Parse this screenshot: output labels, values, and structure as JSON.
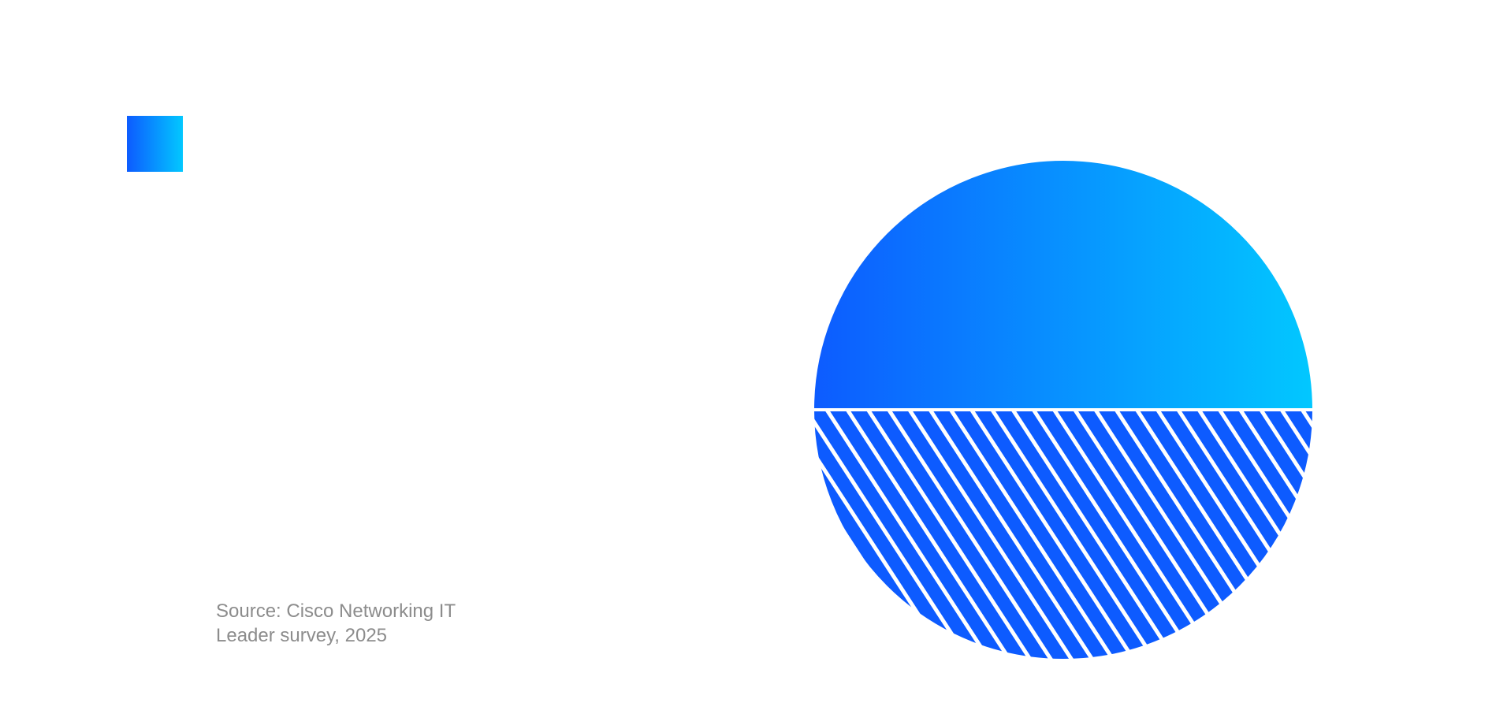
{
  "chart_data": {
    "type": "pie",
    "title": "",
    "slices": [
      {
        "value": 50,
        "style": "solid gradient"
      },
      {
        "value": 50,
        "style": "hatched gradient"
      }
    ],
    "legend": {
      "placement": "top-left",
      "entries": [
        {
          "swatch": "solid gradient"
        }
      ]
    },
    "colors": {
      "gradient_start": "#0D5BFF",
      "gradient_end": "#02C8FF",
      "hatch_line": "#FFFFFF"
    }
  },
  "source": {
    "line1": "Source: Cisco Networking IT",
    "line2": "Leader survey, 2025"
  }
}
